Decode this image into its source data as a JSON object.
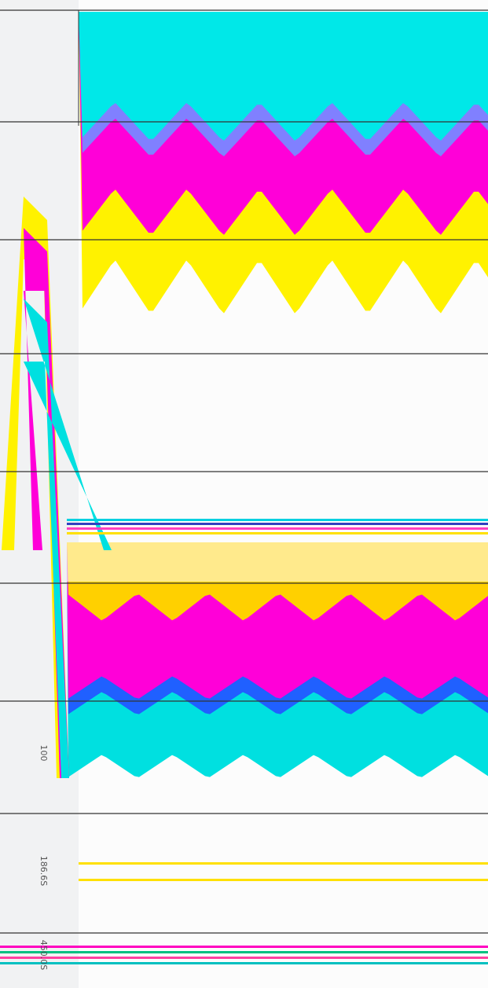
{
  "labels": [
    "100",
    "186.6S",
    "450.0S"
  ]
}
